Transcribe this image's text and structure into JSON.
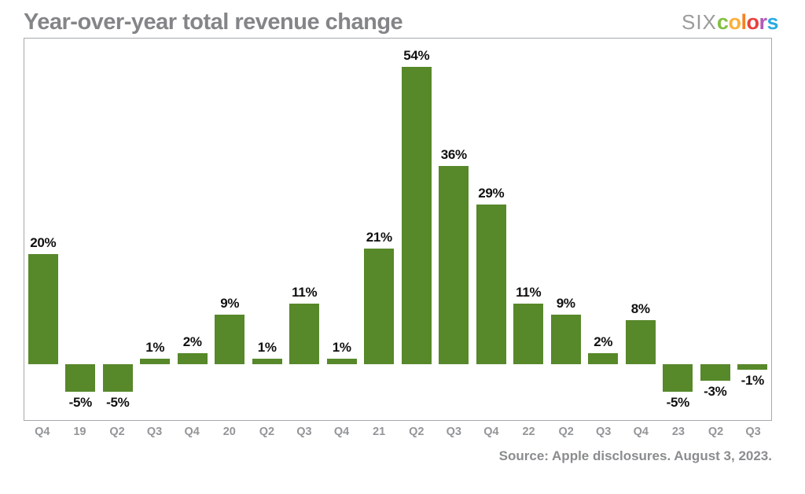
{
  "header": {
    "title": "Year-over-year total revenue change",
    "logo": {
      "prefix": "six",
      "word": "colors",
      "prefix_color": "#9b9b9b",
      "letter_colors": [
        "#83bf41",
        "#fbb03b",
        "#f58220",
        "#e8413c",
        "#b25bb8",
        "#29abe2"
      ]
    }
  },
  "chart_data": {
    "type": "bar",
    "title": "Year-over-year total revenue change",
    "categories": [
      "Q4",
      "19",
      "Q2",
      "Q3",
      "Q4",
      "20",
      "Q2",
      "Q3",
      "Q4",
      "21",
      "Q2",
      "Q3",
      "Q4",
      "22",
      "Q2",
      "Q3",
      "Q4",
      "23",
      "Q2",
      "Q3"
    ],
    "values": [
      20,
      -5,
      -5,
      1,
      2,
      9,
      1,
      11,
      1,
      21,
      54,
      36,
      29,
      11,
      9,
      2,
      8,
      -5,
      -3,
      -1
    ],
    "data_labels": [
      "20%",
      "-5%",
      "-5%",
      "1%",
      "2%",
      "9%",
      "1%",
      "11%",
      "1%",
      "21%",
      "54%",
      "36%",
      "29%",
      "11%",
      "9%",
      "2%",
      "8%",
      "-5%",
      "-3%",
      "-1%"
    ],
    "unit": "%",
    "xlabel": "",
    "ylabel": "",
    "ylim": [
      -10,
      60
    ],
    "grid": false,
    "legend": "none",
    "bar_color": "#57882a"
  },
  "footer": {
    "source": "Source: Apple disclosures. August 3, 2023."
  },
  "colors": {
    "bar": "#57882a",
    "value_label": "#111111",
    "tick_label": "#939598",
    "frame_border": "#a7a9ac",
    "title": "#838588",
    "source": "#8a8c8e"
  }
}
